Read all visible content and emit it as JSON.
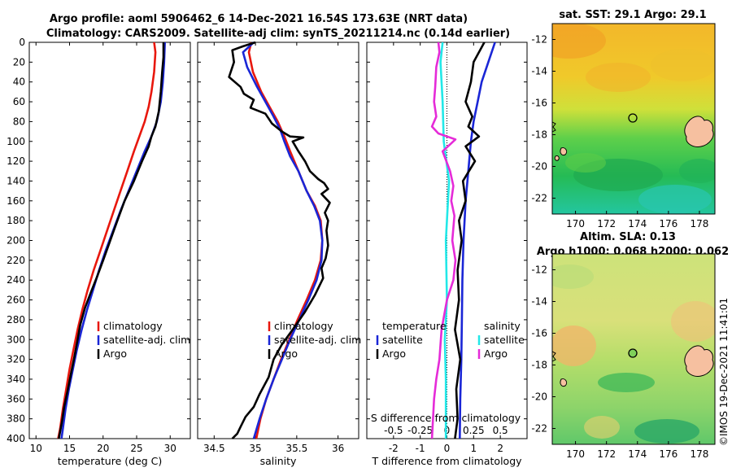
{
  "header": {
    "title_line1": "Argo profile: aoml 5906462_6 14-Dec-2021 16.54S 173.63E (NRT data)",
    "title_line2": "Climatology: CARS2009. Satellite-adj clim: synTS_20211214.nc (0.14d earlier)"
  },
  "colors": {
    "climatology": "#e8170d",
    "satellite": "#1a26d6",
    "argo": "#000000",
    "s_satellite": "#22e8e8",
    "s_argo": "#e52bd8"
  },
  "chart_data": [
    {
      "type": "line",
      "xlabel": "temperature (deg C)",
      "ylim": [
        0,
        400
      ],
      "xlim": [
        9,
        33
      ],
      "xticks": [
        10,
        15,
        20,
        25,
        30
      ],
      "yticks": [
        0,
        20,
        40,
        60,
        80,
        100,
        120,
        140,
        160,
        180,
        200,
        220,
        240,
        260,
        280,
        300,
        320,
        340,
        360,
        380,
        400
      ],
      "legend": [
        "climatology",
        "satellite-adj. clim",
        "Argo"
      ],
      "series": [
        {
          "name": "climatology",
          "points": [
            [
              27.6,
              0
            ],
            [
              27.8,
              10
            ],
            [
              27.6,
              30
            ],
            [
              27.2,
              50
            ],
            [
              26.8,
              65
            ],
            [
              26.2,
              80
            ],
            [
              25.4,
              95
            ],
            [
              24.6,
              110
            ],
            [
              23.6,
              130
            ],
            [
              22.6,
              150
            ],
            [
              21.6,
              170
            ],
            [
              20.6,
              190
            ],
            [
              19.6,
              210
            ],
            [
              18.6,
              230
            ],
            [
              17.7,
              250
            ],
            [
              16.9,
              270
            ],
            [
              16.2,
              290
            ],
            [
              15.6,
              310
            ],
            [
              15.0,
              330
            ],
            [
              14.5,
              350
            ],
            [
              14.0,
              370
            ],
            [
              13.6,
              390
            ],
            [
              13.3,
              400
            ]
          ]
        },
        {
          "name": "satellite-adj. clim",
          "points": [
            [
              29.2,
              0
            ],
            [
              29.1,
              20
            ],
            [
              28.9,
              40
            ],
            [
              28.6,
              60
            ],
            [
              28.0,
              80
            ],
            [
              27.2,
              95
            ],
            [
              26.2,
              110
            ],
            [
              25.0,
              130
            ],
            [
              23.8,
              150
            ],
            [
              22.6,
              170
            ],
            [
              21.5,
              190
            ],
            [
              20.4,
              210
            ],
            [
              19.4,
              230
            ],
            [
              18.5,
              250
            ],
            [
              17.6,
              270
            ],
            [
              16.8,
              290
            ],
            [
              16.1,
              310
            ],
            [
              15.5,
              330
            ],
            [
              14.9,
              350
            ],
            [
              14.4,
              370
            ],
            [
              14.0,
              390
            ],
            [
              13.8,
              400
            ]
          ]
        },
        {
          "name": "Argo",
          "points": [
            [
              29.0,
              0
            ],
            [
              29.0,
              15
            ],
            [
              28.8,
              30
            ],
            [
              28.6,
              50
            ],
            [
              28.3,
              70
            ],
            [
              27.8,
              85
            ],
            [
              27.2,
              95
            ],
            [
              26.8,
              105
            ],
            [
              25.8,
              120
            ],
            [
              25.2,
              130
            ],
            [
              24.6,
              140
            ],
            [
              23.2,
              160
            ],
            [
              22.4,
              175
            ],
            [
              21.6,
              190
            ],
            [
              20.8,
              205
            ],
            [
              20.0,
              220
            ],
            [
              19.2,
              235
            ],
            [
              18.2,
              252
            ],
            [
              17.3,
              268
            ],
            [
              16.6,
              285
            ],
            [
              16.2,
              300
            ],
            [
              15.7,
              318
            ],
            [
              15.2,
              335
            ],
            [
              14.7,
              352
            ],
            [
              14.2,
              368
            ],
            [
              13.9,
              382
            ],
            [
              13.6,
              393
            ],
            [
              13.4,
              400
            ]
          ]
        }
      ]
    },
    {
      "type": "line",
      "xlabel": "salinity",
      "ylim": [
        0,
        400
      ],
      "xlim": [
        34.3,
        36.25
      ],
      "xticks": [
        34.5,
        35,
        35.5,
        36
      ],
      "legend": [
        "climatology",
        "satellite-adj. clim",
        "Argo"
      ],
      "series": [
        {
          "name": "climatology",
          "points": [
            [
              34.95,
              0
            ],
            [
              34.92,
              10
            ],
            [
              34.97,
              30
            ],
            [
              35.07,
              50
            ],
            [
              35.17,
              65
            ],
            [
              35.27,
              80
            ],
            [
              35.35,
              95
            ],
            [
              35.42,
              110
            ],
            [
              35.52,
              130
            ],
            [
              35.62,
              150
            ],
            [
              35.72,
              165
            ],
            [
              35.79,
              180
            ],
            [
              35.81,
              200
            ],
            [
              35.79,
              220
            ],
            [
              35.72,
              240
            ],
            [
              35.62,
              260
            ],
            [
              35.51,
              280
            ],
            [
              35.41,
              300
            ],
            [
              35.31,
              320
            ],
            [
              35.22,
              340
            ],
            [
              35.13,
              360
            ],
            [
              35.06,
              380
            ],
            [
              35.01,
              400
            ]
          ]
        },
        {
          "name": "satellite-adj. clim",
          "points": [
            [
              34.98,
              0
            ],
            [
              34.85,
              10
            ],
            [
              34.9,
              25
            ],
            [
              35.02,
              45
            ],
            [
              35.12,
              60
            ],
            [
              35.22,
              75
            ],
            [
              35.3,
              88
            ],
            [
              35.35,
              100
            ],
            [
              35.42,
              115
            ],
            [
              35.52,
              130
            ],
            [
              35.62,
              150
            ],
            [
              35.71,
              165
            ],
            [
              35.78,
              180
            ],
            [
              35.81,
              200
            ],
            [
              35.8,
              220
            ],
            [
              35.74,
              240
            ],
            [
              35.64,
              260
            ],
            [
              35.53,
              280
            ],
            [
              35.42,
              300
            ],
            [
              35.32,
              320
            ],
            [
              35.22,
              340
            ],
            [
              35.13,
              360
            ],
            [
              35.05,
              380
            ],
            [
              34.98,
              400
            ]
          ]
        },
        {
          "name": "Argo",
          "points": [
            [
              35.0,
              0
            ],
            [
              34.85,
              4
            ],
            [
              34.72,
              8
            ],
            [
              34.74,
              20
            ],
            [
              34.68,
              35
            ],
            [
              34.82,
              45
            ],
            [
              34.86,
              52
            ],
            [
              34.98,
              58
            ],
            [
              34.94,
              66
            ],
            [
              35.12,
              72
            ],
            [
              35.2,
              82
            ],
            [
              35.32,
              90
            ],
            [
              35.42,
              95
            ],
            [
              35.58,
              96
            ],
            [
              35.45,
              100
            ],
            [
              35.52,
              110
            ],
            [
              35.6,
              120
            ],
            [
              35.66,
              130
            ],
            [
              35.76,
              138
            ],
            [
              35.83,
              142
            ],
            [
              35.88,
              148
            ],
            [
              35.8,
              153
            ],
            [
              35.9,
              162
            ],
            [
              35.84,
              172
            ],
            [
              35.88,
              180
            ],
            [
              35.86,
              190
            ],
            [
              35.88,
              205
            ],
            [
              35.85,
              218
            ],
            [
              35.8,
              228
            ],
            [
              35.82,
              238
            ],
            [
              35.72,
              255
            ],
            [
              35.6,
              272
            ],
            [
              35.45,
              290
            ],
            [
              35.32,
              305
            ],
            [
              35.22,
              320
            ],
            [
              35.16,
              338
            ],
            [
              35.05,
              355
            ],
            [
              34.98,
              368
            ],
            [
              34.88,
              378
            ],
            [
              34.82,
              388
            ],
            [
              34.78,
              395
            ],
            [
              34.72,
              400
            ]
          ]
        }
      ]
    },
    {
      "type": "line",
      "xlabel": "T difference from climatology",
      "toplabel": "S difference from climatology",
      "ylim": [
        0,
        400
      ],
      "xlim": [
        -3,
        3
      ],
      "xticks": [
        -2,
        -1,
        0,
        1,
        2
      ],
      "s_ticks": [
        "-0.5",
        "-0.25",
        "0",
        "0.25",
        "0.5"
      ],
      "legend_t_header": "temperature",
      "legend_s_header": "salinity",
      "legend_t": [
        "satellite",
        "Argo"
      ],
      "legend_s": [
        "satellite",
        "Argo"
      ],
      "series": [
        {
          "name": "T satellite",
          "points": [
            [
              1.8,
              0
            ],
            [
              1.55,
              20
            ],
            [
              1.3,
              40
            ],
            [
              1.15,
              60
            ],
            [
              1.0,
              80
            ],
            [
              0.9,
              100
            ],
            [
              0.8,
              130
            ],
            [
              0.7,
              160
            ],
            [
              0.62,
              200
            ],
            [
              0.58,
              240
            ],
            [
              0.56,
              280
            ],
            [
              0.54,
              320
            ],
            [
              0.5,
              360
            ],
            [
              0.48,
              400
            ]
          ]
        },
        {
          "name": "T Argo",
          "points": [
            [
              1.4,
              0
            ],
            [
              1.0,
              20
            ],
            [
              0.9,
              40
            ],
            [
              0.7,
              60
            ],
            [
              0.95,
              75
            ],
            [
              0.8,
              85
            ],
            [
              1.2,
              95
            ],
            [
              0.7,
              105
            ],
            [
              1.05,
              120
            ],
            [
              0.6,
              140
            ],
            [
              0.7,
              160
            ],
            [
              0.45,
              180
            ],
            [
              0.55,
              200
            ],
            [
              0.4,
              230
            ],
            [
              0.45,
              260
            ],
            [
              0.3,
              290
            ],
            [
              0.5,
              320
            ],
            [
              0.35,
              350
            ],
            [
              0.4,
              380
            ],
            [
              0.3,
              400
            ]
          ]
        },
        {
          "name": "S satellite",
          "points": [
            [
              -0.04,
              0
            ],
            [
              -0.06,
              20
            ],
            [
              -0.04,
              60
            ],
            [
              -0.03,
              100
            ],
            [
              0.02,
              140
            ],
            [
              -0.01,
              200
            ],
            [
              0.0,
              260
            ],
            [
              -0.02,
              300
            ],
            [
              -0.01,
              340
            ],
            [
              -0.01,
              400
            ]
          ]
        },
        {
          "name": "S Argo",
          "points": [
            [
              -0.08,
              0
            ],
            [
              -0.07,
              10
            ],
            [
              -0.1,
              25
            ],
            [
              -0.11,
              45
            ],
            [
              -0.12,
              60
            ],
            [
              -0.1,
              75
            ],
            [
              -0.14,
              85
            ],
            [
              -0.08,
              92
            ],
            [
              0.08,
              98
            ],
            [
              -0.04,
              110
            ],
            [
              0.03,
              130
            ],
            [
              0.06,
              145
            ],
            [
              0.04,
              160
            ],
            [
              0.07,
              175
            ],
            [
              0.05,
              200
            ],
            [
              0.08,
              220
            ],
            [
              0.06,
              240
            ],
            [
              0.0,
              260
            ],
            [
              -0.05,
              290
            ],
            [
              -0.07,
              320
            ],
            [
              -0.1,
              340
            ],
            [
              -0.12,
              360
            ],
            [
              -0.13,
              380
            ],
            [
              -0.14,
              400
            ]
          ]
        }
      ]
    },
    {
      "type": "heatmap",
      "title": "sat. SST: 29.1 Argo: 29.1",
      "xticks": [
        170,
        172,
        174,
        176,
        178
      ],
      "yticks": [
        -12,
        -14,
        -16,
        -18,
        -20,
        -22
      ],
      "xlim": [
        168.5,
        179
      ],
      "ylim": [
        -23,
        -11
      ],
      "argo_position": [
        173.63,
        -16.54
      ]
    },
    {
      "type": "heatmap",
      "title_line1": "Altim. SLA: 0.13",
      "title_line2": "Argo h1000: 0.068 h2000: 0.062",
      "xticks": [
        170,
        172,
        174,
        176,
        178
      ],
      "yticks": [
        -12,
        -14,
        -16,
        -18,
        -20,
        -22
      ],
      "xlim": [
        168.5,
        179
      ],
      "ylim": [
        -23,
        -11
      ],
      "argo_position": [
        173.63,
        -16.54
      ]
    }
  ],
  "footer": {
    "stamp": "©IMOS 19-Dec-2021 11:41:01"
  }
}
